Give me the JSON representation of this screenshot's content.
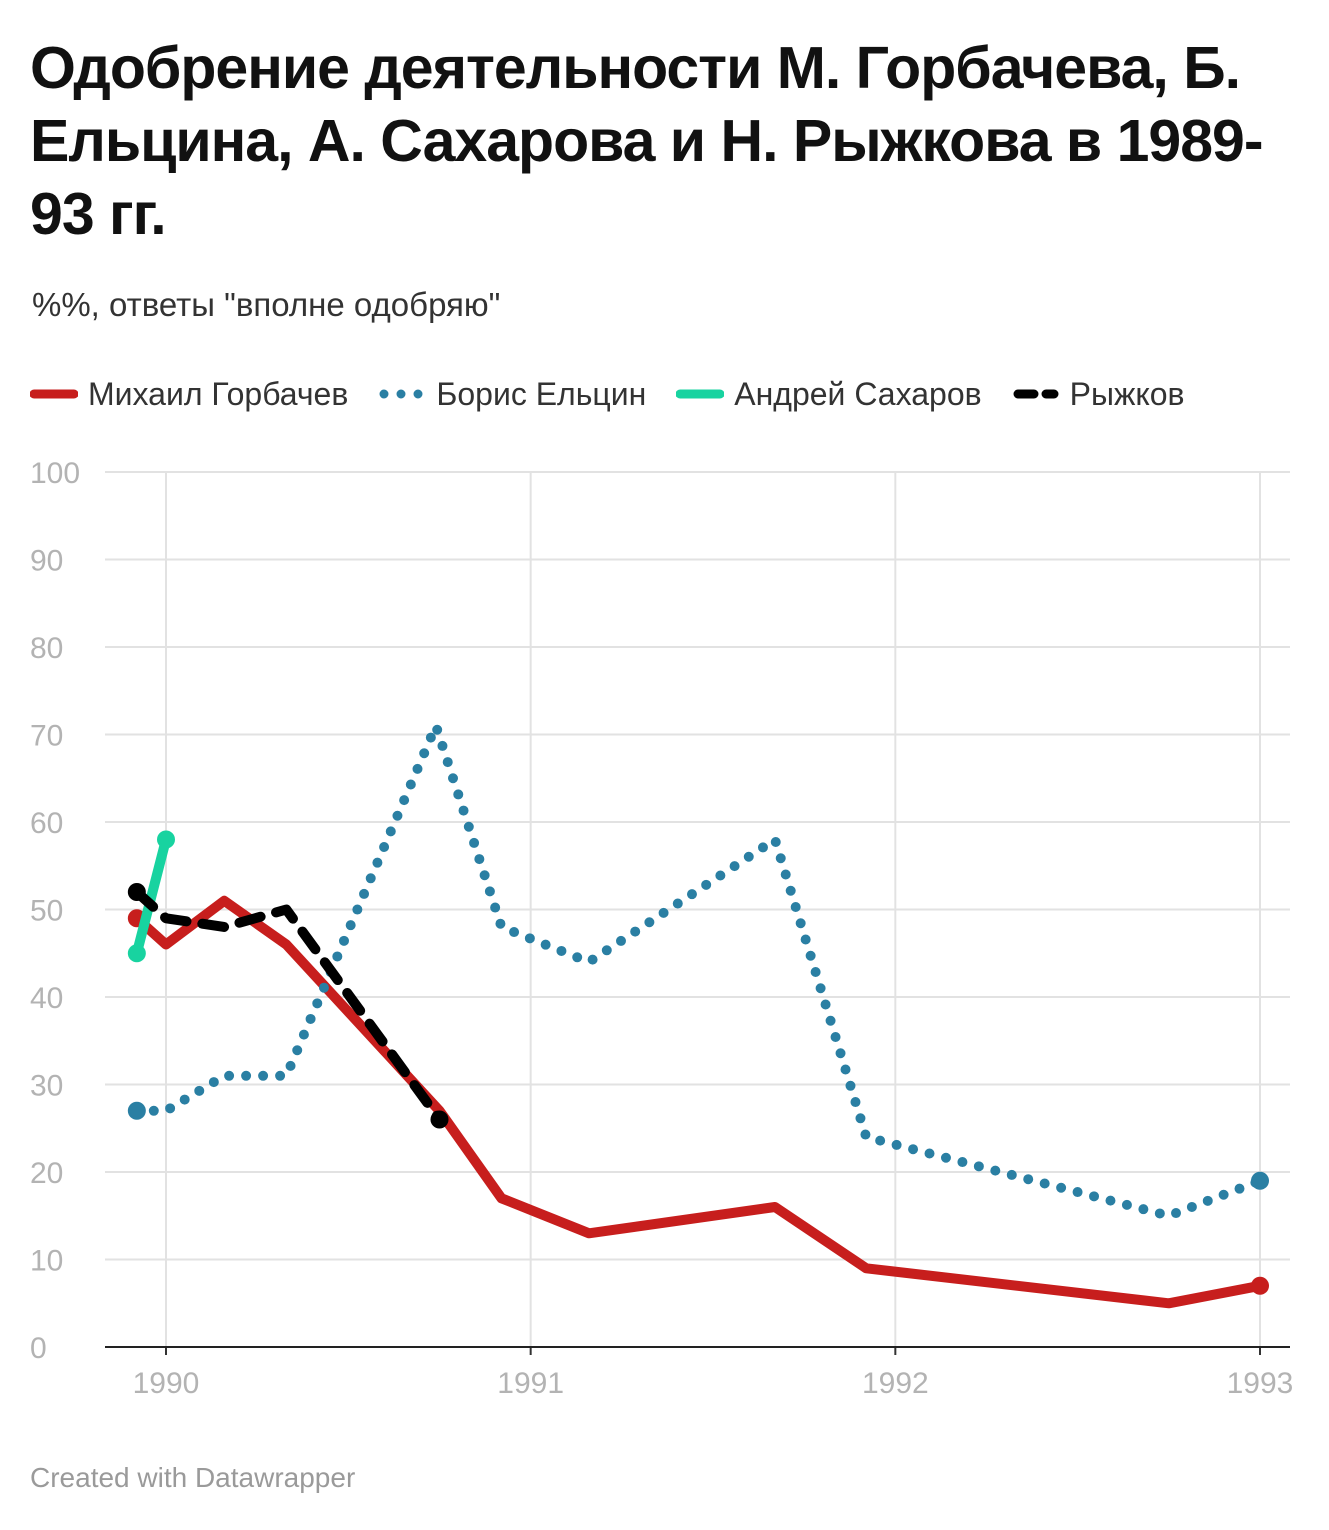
{
  "header": {
    "title": "Одобрение деятельности М. Горбачева, Б. Ельцина, А. Сахарова и Н. Рыжкова в 1989-93 гг.",
    "subtitle": "%%, ответы \"вполне одобряю\""
  },
  "footer": {
    "credit": "Created with Datawrapper"
  },
  "chart_data": {
    "type": "line",
    "ylim": [
      0,
      100
    ],
    "yticks": [
      0,
      10,
      20,
      30,
      40,
      50,
      60,
      70,
      80,
      90,
      100
    ],
    "xlim": [
      1989.92,
      1993.03
    ],
    "xticks": [
      1990,
      1991,
      1992,
      1993
    ],
    "grid": true,
    "legend_position": "top-left",
    "series": [
      {
        "name": "Михаил Горбачев",
        "color": "#c71e1d",
        "style": "solid",
        "points": [
          [
            1989.92,
            49
          ],
          [
            1990.0,
            46
          ],
          [
            1990.16,
            51
          ],
          [
            1990.33,
            46
          ],
          [
            1990.75,
            27
          ],
          [
            1990.92,
            17
          ],
          [
            1991.16,
            13
          ],
          [
            1991.67,
            16
          ],
          [
            1991.92,
            9
          ],
          [
            1992.75,
            5
          ],
          [
            1993.0,
            7
          ]
        ]
      },
      {
        "name": "Борис Ельцин",
        "color": "#2a7fa3",
        "style": "dotted",
        "points": [
          [
            1989.92,
            27
          ],
          [
            1990.0,
            27
          ],
          [
            1990.16,
            31
          ],
          [
            1990.33,
            31
          ],
          [
            1990.74,
            71
          ],
          [
            1990.92,
            48
          ],
          [
            1991.16,
            44
          ],
          [
            1991.67,
            58
          ],
          [
            1991.92,
            24
          ],
          [
            1992.75,
            15
          ],
          [
            1993.0,
            19
          ]
        ]
      },
      {
        "name": "Андрей Сахаров",
        "color": "#18d3a0",
        "style": "solid",
        "points": [
          [
            1989.92,
            45
          ],
          [
            1990.0,
            58
          ]
        ]
      },
      {
        "name": "Рыжков",
        "color": "#000000",
        "style": "dashed",
        "points": [
          [
            1989.92,
            52
          ],
          [
            1990.0,
            49
          ],
          [
            1990.16,
            48
          ],
          [
            1990.33,
            50
          ],
          [
            1990.75,
            26
          ]
        ]
      }
    ]
  }
}
